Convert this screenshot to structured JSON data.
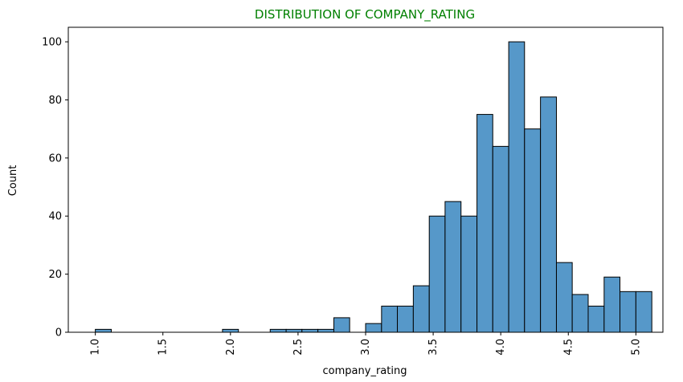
{
  "chart_data": {
    "type": "bar",
    "subtype": "histogram",
    "title": "DISTRIBUTION OF COMPANY_RATING",
    "title_color": "#008000",
    "xlabel": "company_rating",
    "ylabel": "Count",
    "xlim": [
      0.8,
      5.2
    ],
    "ylim": [
      0,
      105
    ],
    "x_ticks": [
      "1.0",
      "1.5",
      "2.0",
      "2.5",
      "3.0",
      "3.5",
      "4.0",
      "4.5",
      "5.0"
    ],
    "y_ticks": [
      "0",
      "20",
      "40",
      "60",
      "80",
      "100"
    ],
    "bar_color": "#5698c9",
    "edge_color": "#000000",
    "grid": false,
    "bins": [
      {
        "x0": 1.0,
        "x1": 1.118,
        "count": 1
      },
      {
        "x0": 1.118,
        "x1": 1.235,
        "count": 0
      },
      {
        "x0": 1.235,
        "x1": 1.353,
        "count": 0
      },
      {
        "x0": 1.353,
        "x1": 1.471,
        "count": 0
      },
      {
        "x0": 1.471,
        "x1": 1.588,
        "count": 0
      },
      {
        "x0": 1.588,
        "x1": 1.706,
        "count": 0
      },
      {
        "x0": 1.706,
        "x1": 1.824,
        "count": 0
      },
      {
        "x0": 1.824,
        "x1": 1.941,
        "count": 0
      },
      {
        "x0": 1.941,
        "x1": 2.059,
        "count": 1
      },
      {
        "x0": 2.059,
        "x1": 2.176,
        "count": 0
      },
      {
        "x0": 2.176,
        "x1": 2.294,
        "count": 0
      },
      {
        "x0": 2.294,
        "x1": 2.412,
        "count": 1
      },
      {
        "x0": 2.412,
        "x1": 2.529,
        "count": 1
      },
      {
        "x0": 2.529,
        "x1": 2.647,
        "count": 1
      },
      {
        "x0": 2.647,
        "x1": 2.765,
        "count": 1
      },
      {
        "x0": 2.765,
        "x1": 2.882,
        "count": 5
      },
      {
        "x0": 2.882,
        "x1": 3.0,
        "count": 0
      },
      {
        "x0": 3.0,
        "x1": 3.118,
        "count": 3
      },
      {
        "x0": 3.118,
        "x1": 3.235,
        "count": 9
      },
      {
        "x0": 3.235,
        "x1": 3.353,
        "count": 9
      },
      {
        "x0": 3.353,
        "x1": 3.471,
        "count": 16
      },
      {
        "x0": 3.471,
        "x1": 3.588,
        "count": 40
      },
      {
        "x0": 3.588,
        "x1": 3.706,
        "count": 45
      },
      {
        "x0": 3.706,
        "x1": 3.824,
        "count": 40
      },
      {
        "x0": 3.824,
        "x1": 3.941,
        "count": 75
      },
      {
        "x0": 3.941,
        "x1": 4.059,
        "count": 64
      },
      {
        "x0": 4.059,
        "x1": 4.176,
        "count": 100
      },
      {
        "x0": 4.176,
        "x1": 4.294,
        "count": 70
      },
      {
        "x0": 4.294,
        "x1": 4.412,
        "count": 81
      },
      {
        "x0": 4.412,
        "x1": 4.529,
        "count": 24
      },
      {
        "x0": 4.529,
        "x1": 4.647,
        "count": 13
      },
      {
        "x0": 4.647,
        "x1": 4.765,
        "count": 9
      },
      {
        "x0": 4.765,
        "x1": 4.882,
        "count": 19
      },
      {
        "x0": 4.882,
        "x1": 5.0,
        "count": 14
      },
      {
        "x0": 5.0,
        "x1": 5.118,
        "count": 14
      }
    ]
  }
}
